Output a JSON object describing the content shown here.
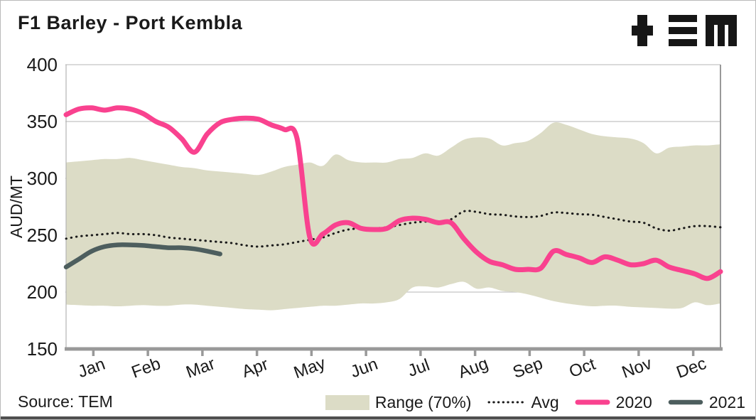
{
  "header": {
    "title": "F1 Barley - Port Kembla",
    "logo": "tem-logo"
  },
  "source": {
    "label": "Source: TEM"
  },
  "legend": [
    {
      "label": "Range (70%)",
      "swatch": "band"
    },
    {
      "label": "Avg",
      "swatch": "dotted"
    },
    {
      "label": "2020",
      "swatch": "pink-line"
    },
    {
      "label": "2021",
      "swatch": "dark-line"
    }
  ],
  "colors": {
    "pink_2020": "#F9428F",
    "dark_2021": "#4D5E5E",
    "range_band": "#DCDCC6",
    "gridline": "#C4C4C4",
    "axis_gray": "#999999",
    "text": "#1A1A1A"
  },
  "chart_data": {
    "type": "line",
    "title": "F1 Barley - Port Kembla",
    "xlabel": "",
    "ylabel": "AUD/MT",
    "ylim": [
      150,
      400
    ],
    "yticks": [
      150,
      200,
      250,
      300,
      350,
      400
    ],
    "x_categories": [
      "Jan",
      "Feb",
      "Mar",
      "Apr",
      "May",
      "Jun",
      "Jul",
      "Aug",
      "Sep",
      "Oct",
      "Nov",
      "Dec"
    ],
    "sampling": "weekly, 52 points Jan-Dec (2021 series ends mid-March)",
    "grid": "horizontal",
    "legend_position": "bottom",
    "series": [
      {
        "name": "Range (70%)",
        "type": "band",
        "color": "#DCDCC6",
        "high": [
          314,
          315,
          316,
          317,
          317,
          318,
          316,
          314,
          312,
          310,
          309,
          307,
          306,
          305,
          304,
          303,
          306,
          310,
          312,
          314,
          311,
          321,
          316,
          314,
          314,
          314,
          317,
          318,
          322,
          320,
          327,
          334,
          336,
          335,
          329,
          331,
          333,
          340,
          349,
          347,
          343,
          339,
          337,
          336,
          335,
          331,
          322,
          327,
          328,
          329,
          329,
          330
        ],
        "low": [
          189,
          188.5,
          188,
          188,
          187.5,
          188,
          188.5,
          188,
          188,
          189,
          189,
          188,
          187,
          186,
          185,
          184.5,
          184,
          185,
          186,
          187,
          188,
          188,
          189,
          190,
          190,
          191,
          194,
          204,
          205,
          204,
          207,
          209,
          203,
          204,
          201,
          200,
          198,
          195,
          192,
          190,
          188.5,
          187.5,
          188,
          188,
          187,
          186.5,
          186,
          185.5,
          186,
          191,
          188.5,
          190
        ]
      },
      {
        "name": "Avg",
        "type": "dotted-line",
        "color": "#1A1A1A",
        "values": [
          247,
          249,
          250,
          251,
          252,
          251,
          251,
          250,
          248,
          247,
          246,
          245,
          244,
          243,
          241,
          240,
          241,
          242,
          244,
          246,
          248,
          252,
          255,
          256,
          256,
          257,
          259,
          261,
          262,
          262,
          264,
          271,
          270.5,
          268.5,
          268,
          266.5,
          266,
          267,
          270,
          269.5,
          268.5,
          268,
          266,
          264,
          262,
          261,
          256,
          254,
          256,
          258,
          258,
          257
        ]
      },
      {
        "name": "2020",
        "type": "line",
        "color": "#F9428F",
        "values": [
          356,
          361,
          362,
          360,
          362,
          361,
          357,
          350,
          345,
          335,
          323,
          339,
          349,
          352,
          353,
          352,
          347,
          343,
          335,
          248,
          251,
          259,
          261,
          256,
          255,
          256,
          263,
          265,
          264,
          261,
          261,
          247,
          235,
          227,
          224,
          220,
          220,
          221,
          236,
          233,
          230,
          226,
          231,
          228,
          224,
          225,
          228,
          222,
          219,
          216,
          212,
          218
        ]
      },
      {
        "name": "2021",
        "type": "line",
        "color": "#4D5E5E",
        "values": [
          222,
          229,
          236,
          240,
          241.5,
          241.5,
          241,
          240,
          239,
          239,
          238,
          236,
          233.5
        ]
      }
    ]
  }
}
